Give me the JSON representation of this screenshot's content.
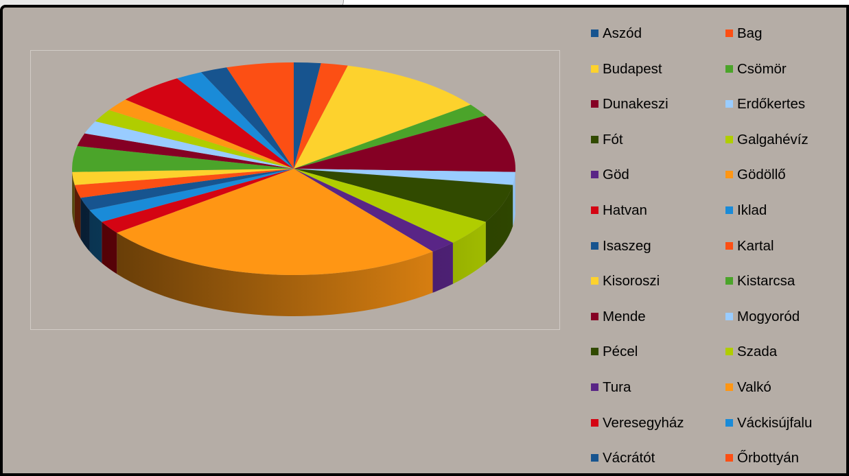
{
  "chart_data": {
    "type": "pie",
    "style": "3d",
    "title": "",
    "legend_position": "right",
    "categories": [
      "Aszód",
      "Bag",
      "Budapest",
      "Csömör",
      "Dunakeszi",
      "Erdőkertes",
      "Fót",
      "Galgahévíz",
      "Göd",
      "Gödöllő",
      "Hatvan",
      "Iklad",
      "Isaszeg",
      "Kartal",
      "Kisoroszi",
      "Kistarcsa",
      "Mende",
      "Mogyoród",
      "Pécel",
      "Szada",
      "Tura",
      "Valkó",
      "Veresegyház",
      "Váckisújfalu",
      "Vácrátót",
      "Őrbottyán"
    ],
    "values": [
      2,
      2,
      11,
      2,
      9,
      2,
      6,
      4,
      2,
      26,
      2,
      2,
      2,
      2,
      2,
      4,
      2,
      2,
      0,
      2,
      0,
      2,
      5,
      2,
      2,
      5
    ],
    "colors": [
      "#17548f",
      "#fc4f14",
      "#fdd22d",
      "#4ba42a",
      "#850024",
      "#99ccff",
      "#314a00",
      "#b0cd00",
      "#592586",
      "#ff9614",
      "#d40413",
      "#1a8bd8",
      "#17548f",
      "#fc4f14",
      "#fdd22d",
      "#4ba42a",
      "#850024",
      "#99ccff",
      "#314a00",
      "#b0cd00",
      "#592586",
      "#ff9614",
      "#d40413",
      "#1a8bd8",
      "#17548f",
      "#fc4f14"
    ]
  }
}
